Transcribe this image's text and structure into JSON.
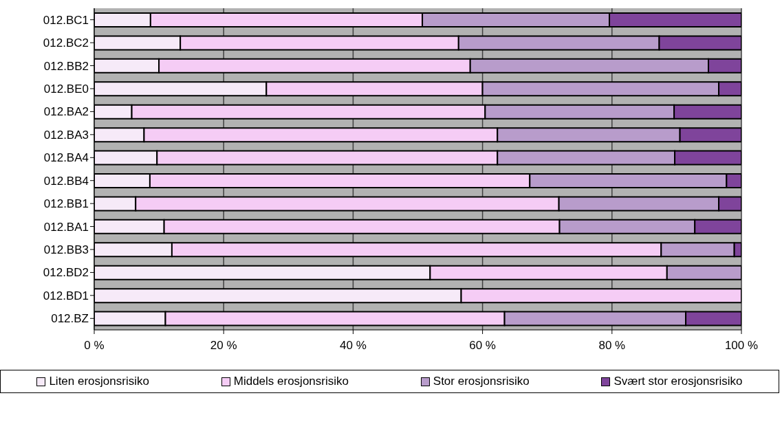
{
  "chart_data": {
    "type": "bar",
    "orientation": "horizontal",
    "stacked": true,
    "categories": [
      "012.BC1",
      "012.BC2",
      "012.BB2",
      "012.BE0",
      "012.BA2",
      "012.BA3",
      "012.BA4",
      "012.BB4",
      "012.BB1",
      "012.BA1",
      "012.BB3",
      "012.BD2",
      "012.BD1",
      "012.BZ"
    ],
    "series": [
      {
        "name": "Liten erosjonsrisiko",
        "color": "#f6eaf8",
        "values": [
          8.7,
          13.3,
          10.0,
          26.6,
          5.8,
          7.7,
          9.7,
          8.6,
          6.4,
          10.8,
          12.0,
          51.9,
          56.7,
          11.0
        ]
      },
      {
        "name": "Middels erosjonsrisiko",
        "color": "#f5ccf5",
        "values": [
          42.0,
          43.0,
          48.1,
          33.4,
          54.6,
          54.6,
          52.6,
          58.7,
          65.4,
          61.1,
          75.6,
          36.6,
          43.3,
          52.4
        ]
      },
      {
        "name": "Stor erosjonsrisiko",
        "color": "#b89ccb",
        "values": [
          28.9,
          31.0,
          36.8,
          36.5,
          29.2,
          28.2,
          27.4,
          30.4,
          24.7,
          20.9,
          11.3,
          11.5,
          0,
          28.0
        ]
      },
      {
        "name": "Svært stor erosjonsrisiko",
        "color": "#7f449b",
        "values": [
          20.4,
          12.7,
          5.1,
          3.5,
          10.4,
          9.5,
          10.3,
          2.3,
          3.5,
          7.2,
          1.1,
          0,
          0,
          8.6
        ]
      }
    ],
    "xlim": [
      0,
      100
    ],
    "xticks": [
      {
        "value": 0,
        "label": "0 %"
      },
      {
        "value": 20,
        "label": "20 %"
      },
      {
        "value": 40,
        "label": "40 %"
      },
      {
        "value": 60,
        "label": "60 %"
      },
      {
        "value": 80,
        "label": "80 %"
      },
      {
        "value": 100,
        "label": "100 %"
      }
    ],
    "grid": "x",
    "legend": "bottom"
  }
}
